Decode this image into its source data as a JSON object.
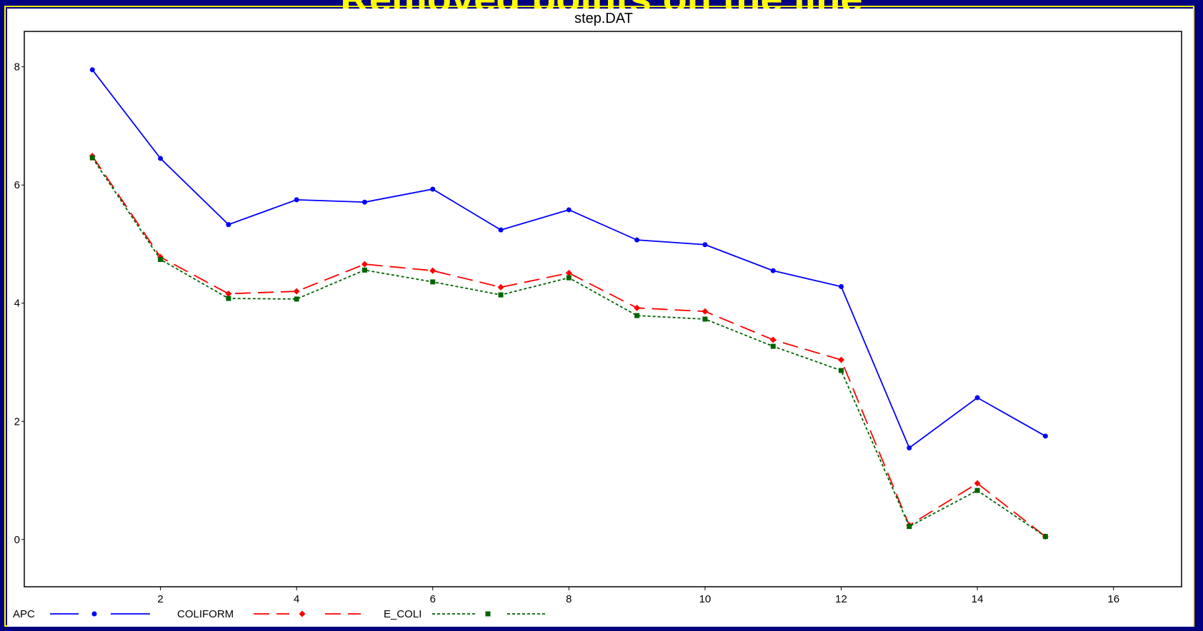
{
  "banner": {
    "text": "Removed points on the line"
  },
  "chart_data": {
    "type": "line",
    "title": "step.DAT",
    "xlabel": "",
    "ylabel": "",
    "xlim": [
      0.0,
      17.0
    ],
    "ylim": [
      -0.8,
      8.6
    ],
    "xticks": [
      2,
      4,
      6,
      8,
      10,
      12,
      14,
      16
    ],
    "yticks": [
      0,
      2,
      4,
      6,
      8
    ],
    "legend_position": "bottom",
    "x": [
      1,
      2,
      3,
      4,
      5,
      6,
      7,
      8,
      9,
      10,
      11,
      12,
      13,
      14,
      15
    ],
    "series": [
      {
        "name": "APC",
        "color": "#0000ff",
        "dash": "solid",
        "marker": "circle",
        "values": [
          7.95,
          6.45,
          5.33,
          5.75,
          5.71,
          5.93,
          5.24,
          5.58,
          5.07,
          4.99,
          4.55,
          4.28,
          1.55,
          2.4,
          1.75
        ]
      },
      {
        "name": "COLIFORM",
        "color": "#ff0000",
        "dash": "longdash",
        "marker": "diamond",
        "values": [
          6.49,
          4.78,
          4.16,
          4.2,
          4.66,
          4.55,
          4.27,
          4.51,
          3.92,
          3.86,
          3.38,
          3.04,
          0.24,
          0.95,
          0.05
        ]
      },
      {
        "name": "E_COLI",
        "color": "#006400",
        "dash": "dotted",
        "marker": "square",
        "values": [
          6.46,
          4.74,
          4.08,
          4.07,
          4.56,
          4.36,
          4.14,
          4.43,
          3.79,
          3.73,
          3.27,
          2.86,
          0.22,
          0.83,
          0.05
        ]
      }
    ]
  }
}
